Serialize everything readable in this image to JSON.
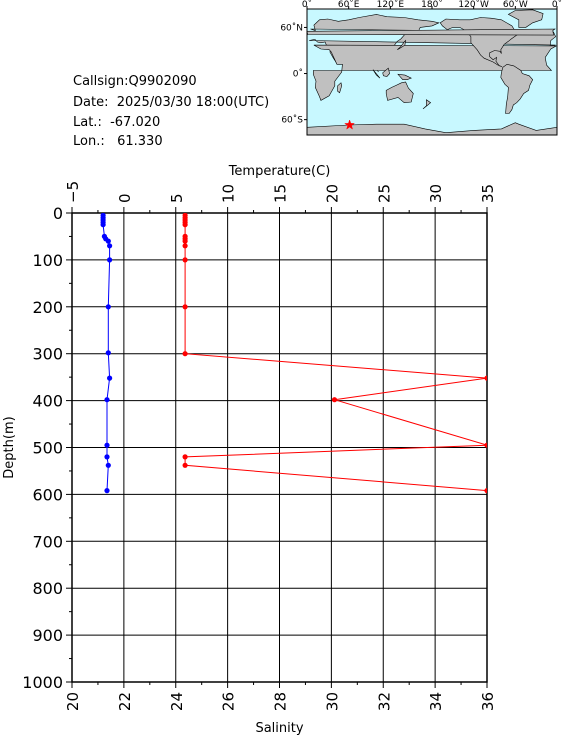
{
  "info": {
    "callsign": "Callsign:Q9902090",
    "date": "Date:  2025/03/30 18:00(UTC)",
    "lat": "Lat.:  -67.020",
    "lon": "Lon.:   61.330"
  },
  "map": {
    "lon_labels": [
      "0˚",
      "60˚E",
      "120˚E",
      "180˚",
      "120˚W",
      "60˚W",
      "0˚"
    ],
    "lat_labels": [
      "60˚N",
      "0˚",
      "60˚S"
    ],
    "ocean_color": "#c8f8ff",
    "land_color": "#c0c0c0",
    "marker": {
      "lon": 61.33,
      "lat": -67.02,
      "color": "#ff0000",
      "symbol": "star"
    }
  },
  "chart_data": {
    "type": "line",
    "top_axis_label": "Temperature(C)",
    "bottom_axis_label": "Salinity",
    "ylabel": "Depth(m)",
    "temperature_range": [
      -5,
      35
    ],
    "salinity_range": [
      20,
      36
    ],
    "depth_range": [
      0,
      1000
    ],
    "temperature_ticks": [
      "−5",
      "0",
      "5",
      "10",
      "15",
      "20",
      "25",
      "30",
      "35"
    ],
    "salinity_ticks": [
      "20",
      "22",
      "24",
      "26",
      "28",
      "30",
      "32",
      "34",
      "36"
    ],
    "depth_ticks": [
      "0",
      "100",
      "200",
      "300",
      "400",
      "500",
      "600",
      "700",
      "800",
      "900",
      "1000"
    ],
    "grid": true,
    "series": [
      {
        "variable": "temperature",
        "color": "#ff0000",
        "points": [
          [
            5.9,
            5
          ],
          [
            5.9,
            10
          ],
          [
            5.9,
            15
          ],
          [
            5.9,
            20
          ],
          [
            5.9,
            25
          ],
          [
            5.9,
            50
          ],
          [
            5.9,
            55
          ],
          [
            5.9,
            60
          ],
          [
            5.9,
            70
          ],
          [
            5.9,
            100
          ],
          [
            5.9,
            200
          ],
          [
            5.9,
            300
          ],
          [
            35.0,
            352
          ],
          [
            20.3,
            398
          ],
          [
            35.0,
            495
          ],
          [
            5.9,
            520
          ],
          [
            5.9,
            538
          ],
          [
            35.0,
            592
          ]
        ]
      },
      {
        "variable": "salinity",
        "color": "#0000ff",
        "points": [
          [
            21.2,
            5
          ],
          [
            21.2,
            10
          ],
          [
            21.2,
            15
          ],
          [
            21.2,
            20
          ],
          [
            21.2,
            25
          ],
          [
            21.25,
            50
          ],
          [
            21.3,
            55
          ],
          [
            21.4,
            60
          ],
          [
            21.45,
            70
          ],
          [
            21.45,
            100
          ],
          [
            21.4,
            200
          ],
          [
            21.4,
            298
          ],
          [
            21.45,
            352
          ],
          [
            21.35,
            398
          ],
          [
            21.35,
            495
          ],
          [
            21.35,
            520
          ],
          [
            21.4,
            538
          ],
          [
            21.35,
            592
          ]
        ]
      }
    ]
  }
}
